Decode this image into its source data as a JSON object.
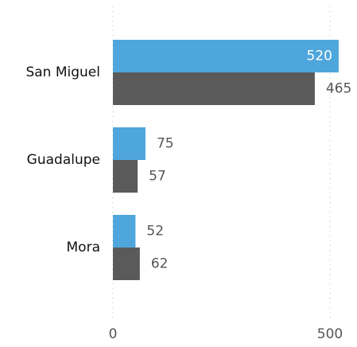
{
  "chart_data": {
    "type": "bar",
    "orientation": "horizontal",
    "categories": [
      "San Miguel",
      "Guadalupe",
      "Mora"
    ],
    "series": [
      {
        "color": "#4ea6dc",
        "values": [
          520,
          75,
          52
        ]
      },
      {
        "color": "#5a5a5a",
        "values": [
          465,
          57,
          62
        ]
      }
    ],
    "xlim": [
      0,
      560
    ],
    "xticks": [
      0,
      500
    ],
    "grid": true
  }
}
